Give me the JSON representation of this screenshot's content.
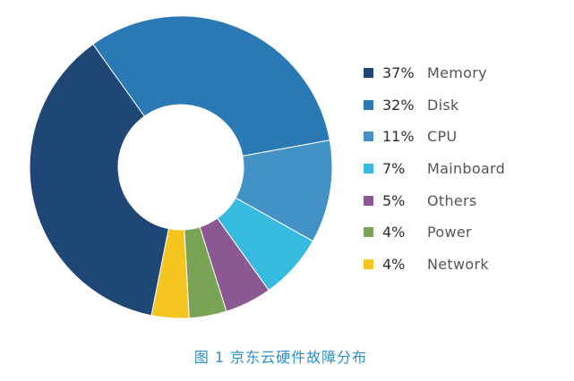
{
  "chart_data": {
    "type": "pie",
    "variant": "donut",
    "categories": [
      "Memory",
      "Disk",
      "CPU",
      "Mainboard",
      "Others",
      "Power",
      "Network"
    ],
    "values": [
      37,
      32,
      11,
      7,
      5,
      4,
      4
    ],
    "value_labels": [
      "37%",
      "32%",
      "11%",
      "7%",
      "5%",
      "4%",
      "4%"
    ],
    "colors": [
      "#1e4776",
      "#2a78b4",
      "#4392c6",
      "#38bbe0",
      "#8c5894",
      "#7aa455",
      "#f4c41f"
    ],
    "legend_position": "right",
    "title": ""
  },
  "caption": "图 1   京东云硬件故障分布"
}
